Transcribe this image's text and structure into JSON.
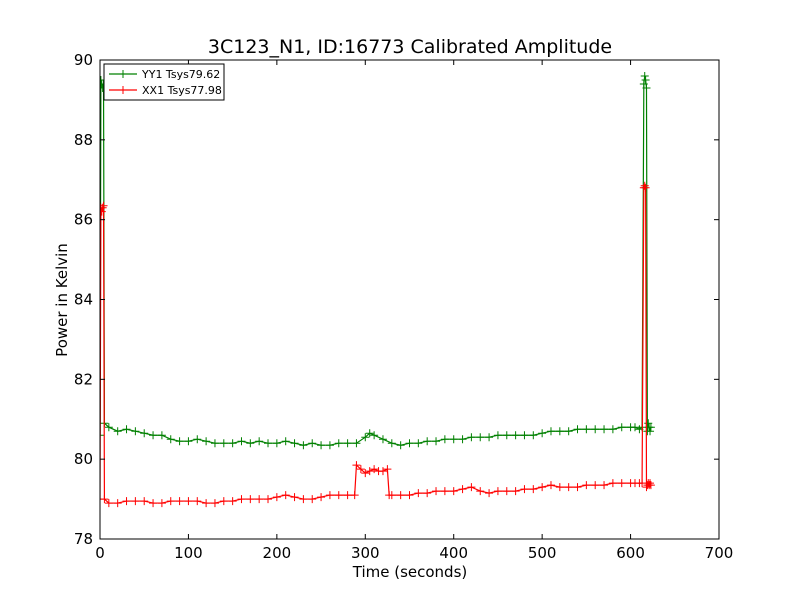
{
  "chart_data": {
    "type": "line",
    "title": "3C123_N1, ID:16773 Calibrated Amplitude",
    "xlabel": "Time (seconds)",
    "ylabel": "Power in Kelvin",
    "xlim": [
      0,
      700
    ],
    "ylim": [
      78,
      90
    ],
    "xticks": [
      0,
      100,
      200,
      300,
      400,
      500,
      600,
      700
    ],
    "yticks": [
      78,
      80,
      82,
      84,
      86,
      88,
      90
    ],
    "grid": false,
    "legend_position": "top-left",
    "marker": "plus",
    "series": [
      {
        "name": "YY1 Tsys79.62",
        "color": "#008000",
        "x": [
          0,
          1,
          2,
          3,
          4,
          5,
          10,
          20,
          30,
          40,
          50,
          60,
          70,
          80,
          90,
          100,
          110,
          120,
          130,
          140,
          150,
          160,
          170,
          180,
          190,
          200,
          210,
          220,
          230,
          240,
          250,
          260,
          270,
          280,
          290,
          300,
          305,
          310,
          320,
          330,
          340,
          350,
          360,
          370,
          380,
          390,
          400,
          410,
          420,
          430,
          440,
          450,
          460,
          470,
          480,
          490,
          500,
          510,
          520,
          530,
          540,
          550,
          560,
          570,
          580,
          590,
          600,
          605,
          610,
          613,
          615,
          616,
          617,
          618,
          619,
          620,
          621,
          622,
          623
        ],
        "y": [
          80.6,
          89.5,
          89.4,
          89.3,
          89.4,
          80.9,
          80.8,
          80.7,
          80.75,
          80.7,
          80.65,
          80.6,
          80.6,
          80.5,
          80.45,
          80.45,
          80.5,
          80.45,
          80.4,
          80.4,
          80.4,
          80.45,
          80.4,
          80.45,
          80.4,
          80.4,
          80.45,
          80.4,
          80.35,
          80.4,
          80.35,
          80.35,
          80.4,
          80.4,
          80.4,
          80.55,
          80.65,
          80.6,
          80.5,
          80.4,
          80.35,
          80.4,
          80.4,
          80.45,
          80.45,
          80.5,
          80.5,
          80.5,
          80.55,
          80.55,
          80.55,
          80.6,
          80.6,
          80.6,
          80.6,
          80.6,
          80.65,
          80.7,
          80.7,
          80.7,
          80.75,
          80.75,
          80.75,
          80.75,
          80.75,
          80.8,
          80.8,
          80.8,
          80.75,
          80.8,
          89.4,
          89.6,
          89.5,
          89.3,
          80.7,
          80.9,
          80.8,
          80.7,
          80.8
        ]
      },
      {
        "name": "XX1 Tsys77.98",
        "color": "#ff0000",
        "x": [
          0,
          1,
          2,
          3,
          4,
          5,
          10,
          20,
          30,
          40,
          50,
          60,
          70,
          80,
          90,
          100,
          110,
          120,
          130,
          140,
          150,
          160,
          170,
          180,
          190,
          200,
          210,
          220,
          230,
          240,
          250,
          260,
          270,
          280,
          288,
          290,
          295,
          300,
          305,
          310,
          315,
          320,
          325,
          327,
          330,
          340,
          350,
          360,
          370,
          380,
          390,
          400,
          410,
          420,
          430,
          440,
          450,
          460,
          470,
          480,
          490,
          500,
          510,
          520,
          530,
          540,
          550,
          560,
          570,
          580,
          590,
          600,
          605,
          610,
          613,
          615,
          616,
          617,
          618,
          619,
          620,
          621,
          622,
          623
        ],
        "y": [
          79.0,
          86.3,
          86.2,
          86.3,
          86.35,
          79.0,
          78.9,
          78.9,
          78.95,
          78.95,
          78.95,
          78.9,
          78.9,
          78.95,
          78.95,
          78.95,
          78.95,
          78.9,
          78.9,
          78.95,
          78.95,
          79.0,
          79.0,
          79.0,
          79.0,
          79.05,
          79.1,
          79.05,
          79.0,
          79.0,
          79.05,
          79.1,
          79.1,
          79.1,
          79.1,
          79.85,
          79.75,
          79.65,
          79.7,
          79.75,
          79.7,
          79.7,
          79.75,
          79.1,
          79.1,
          79.1,
          79.1,
          79.15,
          79.15,
          79.2,
          79.2,
          79.2,
          79.25,
          79.3,
          79.2,
          79.15,
          79.2,
          79.2,
          79.2,
          79.25,
          79.25,
          79.3,
          79.35,
          79.3,
          79.3,
          79.3,
          79.35,
          79.35,
          79.35,
          79.4,
          79.4,
          79.4,
          79.4,
          79.4,
          79.4,
          86.8,
          86.85,
          86.8,
          79.3,
          79.35,
          79.4,
          79.35,
          79.4,
          79.35
        ]
      }
    ]
  }
}
